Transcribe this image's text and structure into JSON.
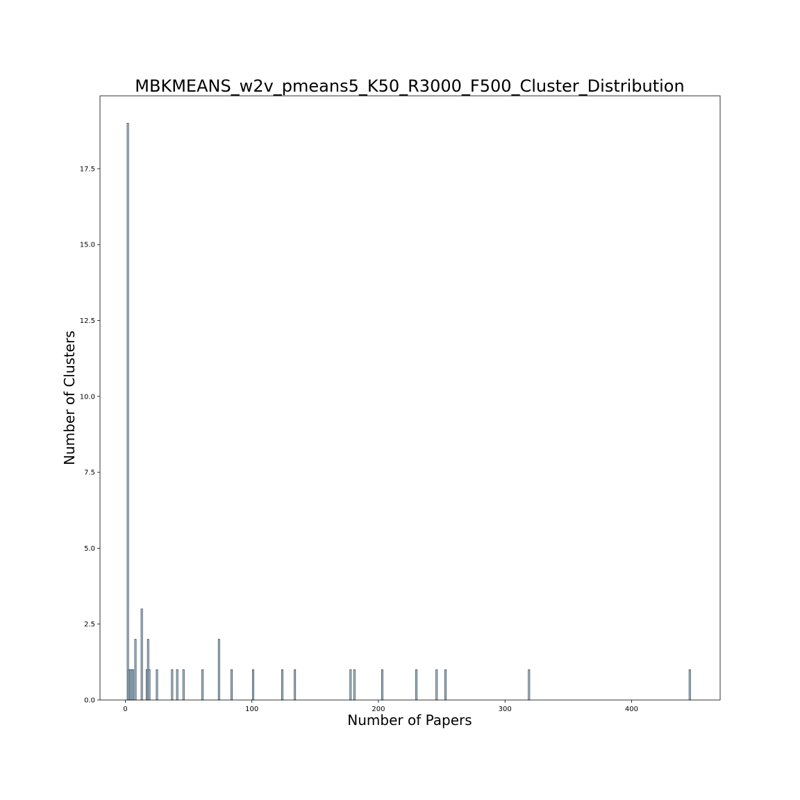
{
  "chart_data": {
    "type": "bar",
    "title": "MBKMEANS_w2v_pmeans5_K50_R3000_F500_Cluster_Distribution",
    "xlabel": "Number of Papers",
    "ylabel": "Number of Clusters",
    "xlim": [
      -20,
      470
    ],
    "ylim": [
      0,
      19.9
    ],
    "xticks": [
      0,
      100,
      200,
      300,
      400
    ],
    "yticks": [
      0.0,
      2.5,
      5.0,
      7.5,
      10.0,
      12.5,
      15.0,
      17.5
    ],
    "xtick_labels": [
      "0",
      "100",
      "200",
      "300",
      "400"
    ],
    "ytick_labels": [
      "0.0",
      "2.5",
      "5.0",
      "7.5",
      "10.0",
      "12.5",
      "15.0",
      "17.5"
    ],
    "grid": false,
    "bar_color": "#a9c4d6",
    "edge_color": "#2f3a45",
    "points": [
      {
        "x": 2,
        "y": 19
      },
      {
        "x": 3,
        "y": 1
      },
      {
        "x": 4,
        "y": 1
      },
      {
        "x": 5,
        "y": 1
      },
      {
        "x": 6,
        "y": 1
      },
      {
        "x": 8,
        "y": 2
      },
      {
        "x": 13,
        "y": 3
      },
      {
        "x": 17,
        "y": 1
      },
      {
        "x": 18,
        "y": 2
      },
      {
        "x": 19,
        "y": 1
      },
      {
        "x": 25,
        "y": 1
      },
      {
        "x": 37,
        "y": 1
      },
      {
        "x": 41,
        "y": 1
      },
      {
        "x": 46,
        "y": 1
      },
      {
        "x": 61,
        "y": 1
      },
      {
        "x": 74,
        "y": 2
      },
      {
        "x": 84,
        "y": 1
      },
      {
        "x": 101,
        "y": 1
      },
      {
        "x": 124,
        "y": 1
      },
      {
        "x": 134,
        "y": 1
      },
      {
        "x": 178,
        "y": 1
      },
      {
        "x": 181,
        "y": 1
      },
      {
        "x": 203,
        "y": 1
      },
      {
        "x": 230,
        "y": 1
      },
      {
        "x": 246,
        "y": 1
      },
      {
        "x": 253,
        "y": 1
      },
      {
        "x": 319,
        "y": 1
      },
      {
        "x": 446,
        "y": 1
      }
    ]
  }
}
